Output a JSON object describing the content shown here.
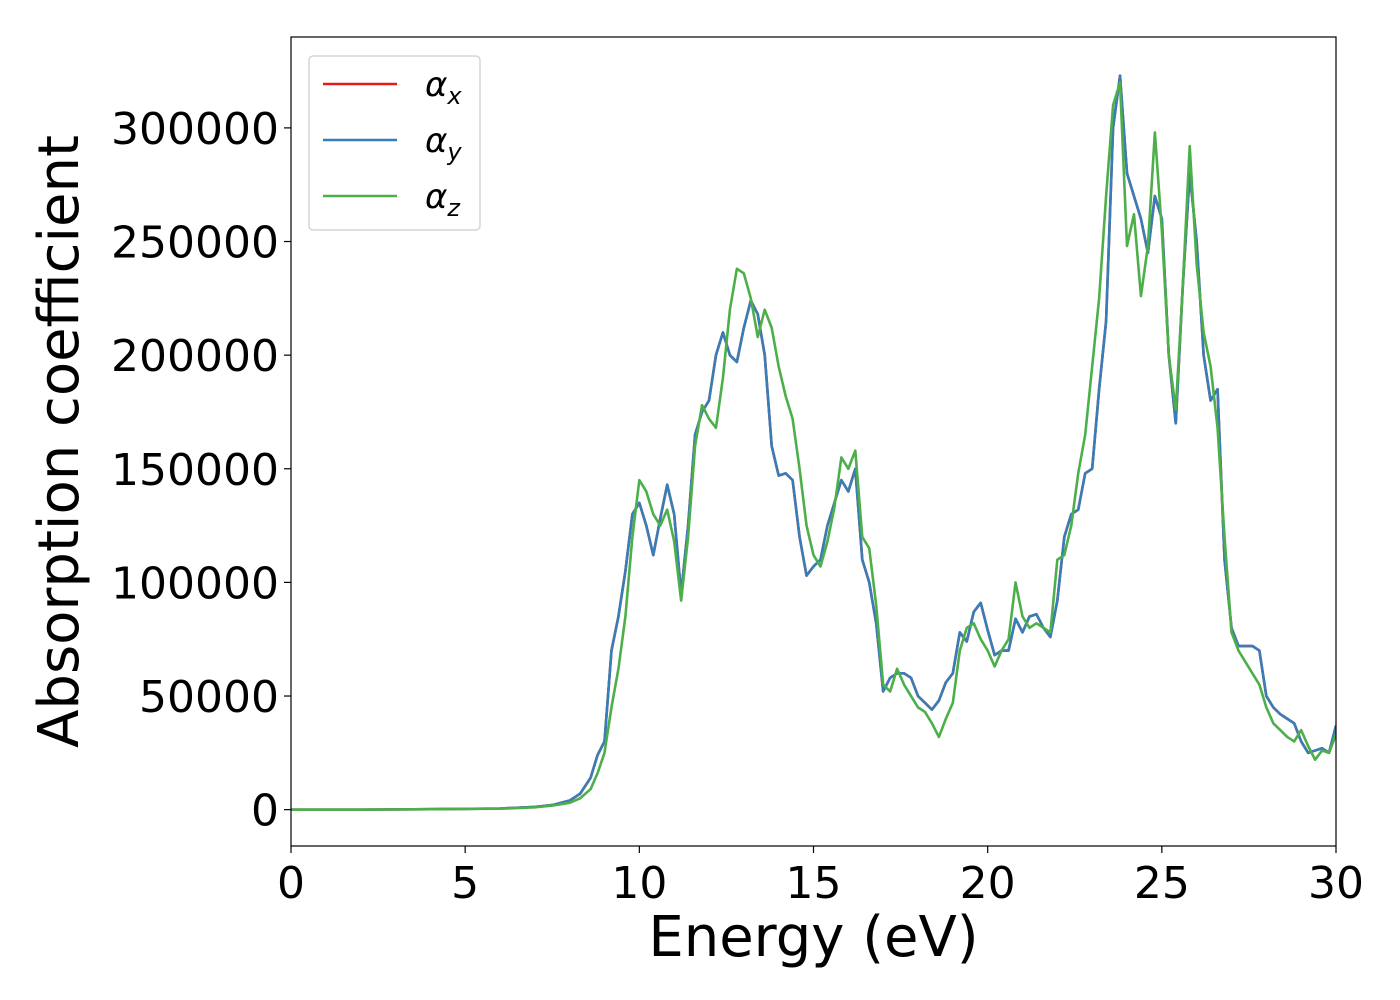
{
  "chart_data": {
    "type": "line",
    "xlabel": "Energy (eV)",
    "ylabel": "Absorption coefficient",
    "xlim": [
      0,
      30
    ],
    "ylim": [
      -16000,
      340000
    ],
    "xticks": [
      0,
      5,
      10,
      15,
      20,
      25,
      30
    ],
    "xtick_labels": [
      "0",
      "5",
      "10",
      "15",
      "20",
      "25",
      "30"
    ],
    "yticks": [
      0,
      50000,
      100000,
      150000,
      200000,
      250000,
      300000
    ],
    "ytick_labels": [
      "0",
      "50000",
      "100000",
      "150000",
      "200000",
      "250000",
      "300000"
    ],
    "grid": false,
    "legend": {
      "position": "top-left",
      "entries": [
        {
          "symbol": "α",
          "subscript": "x"
        },
        {
          "symbol": "α",
          "subscript": "y"
        },
        {
          "symbol": "α",
          "subscript": "z"
        }
      ]
    },
    "series": [
      {
        "name": "αx",
        "color": "#e41a1c",
        "x": [
          0,
          2,
          4,
          6,
          7,
          7.5,
          8,
          8.3,
          8.6,
          8.8,
          9.0,
          9.2,
          9.4,
          9.6,
          9.8,
          10.0,
          10.2,
          10.4,
          10.6,
          10.8,
          11.0,
          11.2,
          11.4,
          11.6,
          11.8,
          12.0,
          12.2,
          12.4,
          12.6,
          12.8,
          13.0,
          13.2,
          13.4,
          13.6,
          13.8,
          14.0,
          14.2,
          14.4,
          14.6,
          14.8,
          15.0,
          15.2,
          15.4,
          15.6,
          15.8,
          16.0,
          16.2,
          16.4,
          16.6,
          16.8,
          17.0,
          17.2,
          17.4,
          17.6,
          17.8,
          18.0,
          18.2,
          18.4,
          18.6,
          18.8,
          19.0,
          19.2,
          19.4,
          19.6,
          19.8,
          20.0,
          20.2,
          20.4,
          20.6,
          20.8,
          21.0,
          21.2,
          21.4,
          21.6,
          21.8,
          22.0,
          22.2,
          22.4,
          22.6,
          22.8,
          23.0,
          23.2,
          23.4,
          23.6,
          23.8,
          24.0,
          24.2,
          24.4,
          24.6,
          24.8,
          25.0,
          25.2,
          25.4,
          25.6,
          25.8,
          26.0,
          26.2,
          26.4,
          26.6,
          26.8,
          27.0,
          27.2,
          27.4,
          27.6,
          27.8,
          28.0,
          28.2,
          28.4,
          28.6,
          28.8,
          29.0,
          29.2,
          29.4,
          29.6,
          29.8,
          30.0
        ],
        "y": [
          0,
          0,
          200,
          500,
          1200,
          2000,
          4000,
          7000,
          14000,
          24000,
          30000,
          70000,
          85000,
          105000,
          130000,
          135000,
          125000,
          112000,
          128000,
          143000,
          130000,
          95000,
          125000,
          165000,
          175000,
          180000,
          200000,
          210000,
          200000,
          197000,
          212000,
          224000,
          218000,
          200000,
          160000,
          147000,
          148000,
          145000,
          120000,
          103000,
          107000,
          110000,
          125000,
          135000,
          145000,
          140000,
          150000,
          110000,
          100000,
          82000,
          52000,
          58000,
          60000,
          60000,
          58000,
          50000,
          47000,
          44000,
          48000,
          56000,
          60000,
          78000,
          74000,
          87000,
          91000,
          79000,
          68000,
          70000,
          70000,
          84000,
          78000,
          85000,
          86000,
          80000,
          76000,
          92000,
          120000,
          130000,
          132000,
          148000,
          150000,
          185000,
          215000,
          300000,
          323000,
          280000,
          270000,
          260000,
          245000,
          270000,
          260000,
          200000,
          170000,
          230000,
          280000,
          250000,
          200000,
          180000,
          185000,
          110000,
          80000,
          72000,
          72000,
          72000,
          70000,
          50000,
          45000,
          42000,
          40000,
          38000,
          30000,
          25000,
          26000,
          27000,
          25000,
          37000
        ]
      },
      {
        "name": "αy",
        "color": "#377eb8",
        "x": [
          0,
          2,
          4,
          6,
          7,
          7.5,
          8,
          8.3,
          8.6,
          8.8,
          9.0,
          9.2,
          9.4,
          9.6,
          9.8,
          10.0,
          10.2,
          10.4,
          10.6,
          10.8,
          11.0,
          11.2,
          11.4,
          11.6,
          11.8,
          12.0,
          12.2,
          12.4,
          12.6,
          12.8,
          13.0,
          13.2,
          13.4,
          13.6,
          13.8,
          14.0,
          14.2,
          14.4,
          14.6,
          14.8,
          15.0,
          15.2,
          15.4,
          15.6,
          15.8,
          16.0,
          16.2,
          16.4,
          16.6,
          16.8,
          17.0,
          17.2,
          17.4,
          17.6,
          17.8,
          18.0,
          18.2,
          18.4,
          18.6,
          18.8,
          19.0,
          19.2,
          19.4,
          19.6,
          19.8,
          20.0,
          20.2,
          20.4,
          20.6,
          20.8,
          21.0,
          21.2,
          21.4,
          21.6,
          21.8,
          22.0,
          22.2,
          22.4,
          22.6,
          22.8,
          23.0,
          23.2,
          23.4,
          23.6,
          23.8,
          24.0,
          24.2,
          24.4,
          24.6,
          24.8,
          25.0,
          25.2,
          25.4,
          25.6,
          25.8,
          26.0,
          26.2,
          26.4,
          26.6,
          26.8,
          27.0,
          27.2,
          27.4,
          27.6,
          27.8,
          28.0,
          28.2,
          28.4,
          28.6,
          28.8,
          29.0,
          29.2,
          29.4,
          29.6,
          29.8,
          30.0
        ],
        "y": [
          0,
          0,
          200,
          500,
          1200,
          2000,
          4000,
          7000,
          14000,
          24000,
          30000,
          70000,
          85000,
          105000,
          130000,
          135000,
          125000,
          112000,
          128000,
          143000,
          130000,
          95000,
          125000,
          165000,
          175000,
          180000,
          200000,
          210000,
          200000,
          197000,
          212000,
          224000,
          218000,
          200000,
          160000,
          147000,
          148000,
          145000,
          120000,
          103000,
          107000,
          110000,
          125000,
          135000,
          145000,
          140000,
          150000,
          110000,
          100000,
          82000,
          52000,
          58000,
          60000,
          60000,
          58000,
          50000,
          47000,
          44000,
          48000,
          56000,
          60000,
          78000,
          74000,
          87000,
          91000,
          79000,
          68000,
          70000,
          70000,
          84000,
          78000,
          85000,
          86000,
          80000,
          76000,
          92000,
          120000,
          130000,
          132000,
          148000,
          150000,
          185000,
          215000,
          300000,
          323000,
          280000,
          270000,
          260000,
          245000,
          270000,
          260000,
          200000,
          170000,
          230000,
          280000,
          250000,
          200000,
          180000,
          185000,
          110000,
          80000,
          72000,
          72000,
          72000,
          70000,
          50000,
          45000,
          42000,
          40000,
          38000,
          30000,
          25000,
          26000,
          27000,
          25000,
          37000
        ]
      },
      {
        "name": "αz",
        "color": "#4daf4a",
        "x": [
          0,
          2,
          4,
          6,
          7,
          7.5,
          8,
          8.3,
          8.6,
          8.8,
          9.0,
          9.2,
          9.4,
          9.6,
          9.8,
          10.0,
          10.2,
          10.4,
          10.6,
          10.8,
          11.0,
          11.2,
          11.4,
          11.6,
          11.8,
          12.0,
          12.2,
          12.4,
          12.6,
          12.8,
          13.0,
          13.2,
          13.4,
          13.6,
          13.8,
          14.0,
          14.2,
          14.4,
          14.6,
          14.8,
          15.0,
          15.2,
          15.4,
          15.6,
          15.8,
          16.0,
          16.2,
          16.4,
          16.6,
          16.8,
          17.0,
          17.2,
          17.4,
          17.6,
          17.8,
          18.0,
          18.2,
          18.4,
          18.6,
          18.8,
          19.0,
          19.2,
          19.4,
          19.6,
          19.8,
          20.0,
          20.2,
          20.4,
          20.6,
          20.8,
          21.0,
          21.2,
          21.4,
          21.6,
          21.8,
          22.0,
          22.2,
          22.4,
          22.6,
          22.8,
          23.0,
          23.2,
          23.4,
          23.6,
          23.8,
          24.0,
          24.2,
          24.4,
          24.6,
          24.8,
          25.0,
          25.2,
          25.4,
          25.6,
          25.8,
          26.0,
          26.2,
          26.4,
          26.6,
          26.8,
          27.0,
          27.2,
          27.4,
          27.6,
          27.8,
          28.0,
          28.2,
          28.4,
          28.6,
          28.8,
          29.0,
          29.2,
          29.4,
          29.6,
          29.8,
          30.0
        ],
        "y": [
          0,
          0,
          200,
          400,
          1000,
          1800,
          3000,
          5000,
          9000,
          16000,
          25000,
          45000,
          62000,
          85000,
          120000,
          145000,
          140000,
          130000,
          125000,
          132000,
          118000,
          92000,
          120000,
          160000,
          178000,
          172000,
          168000,
          190000,
          220000,
          238000,
          236000,
          225000,
          208000,
          220000,
          212000,
          195000,
          182000,
          172000,
          150000,
          125000,
          112000,
          107000,
          118000,
          133000,
          155000,
          150000,
          158000,
          120000,
          115000,
          90000,
          55000,
          52000,
          62000,
          55000,
          50000,
          45000,
          43000,
          38000,
          32000,
          40000,
          47000,
          70000,
          80000,
          82000,
          75000,
          70000,
          63000,
          70000,
          75000,
          100000,
          85000,
          80000,
          82000,
          80000,
          78000,
          110000,
          112000,
          125000,
          148000,
          165000,
          195000,
          225000,
          270000,
          310000,
          320000,
          248000,
          262000,
          226000,
          248000,
          298000,
          255000,
          200000,
          176000,
          230000,
          292000,
          240000,
          210000,
          195000,
          168000,
          120000,
          78000,
          70000,
          65000,
          60000,
          55000,
          45000,
          38000,
          35000,
          32000,
          30000,
          35000,
          28000,
          22000,
          26000,
          25000,
          33000
        ]
      }
    ]
  }
}
